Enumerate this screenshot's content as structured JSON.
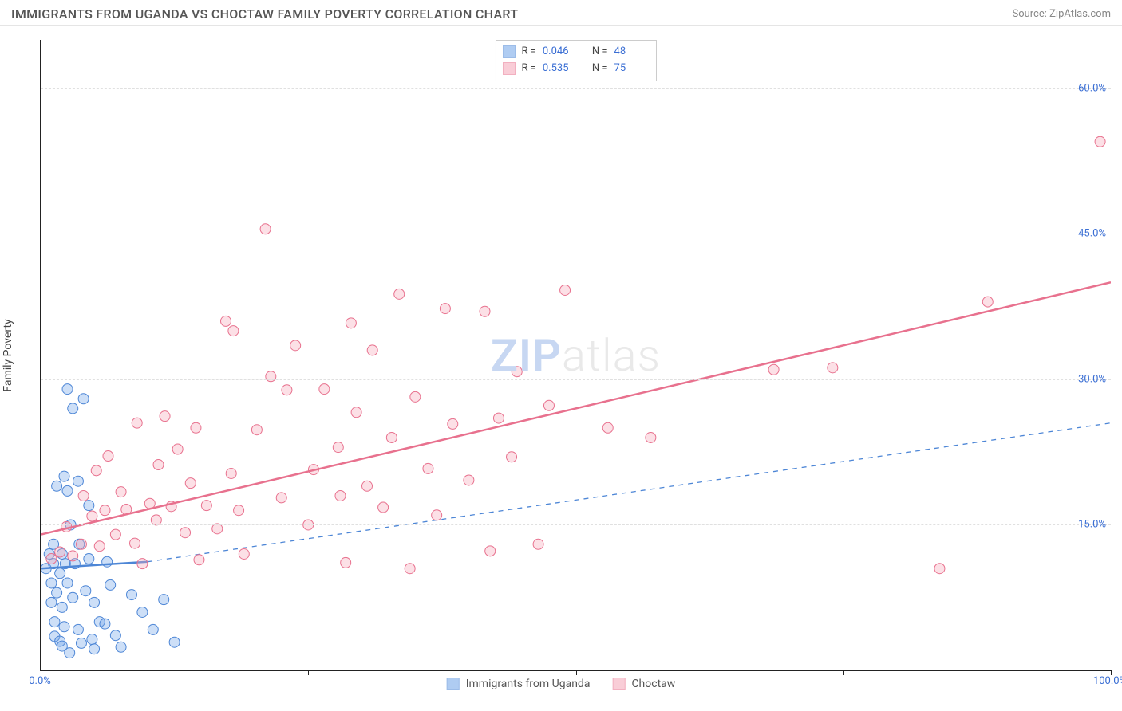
{
  "header": {
    "title": "IMMIGRANTS FROM UGANDA VS CHOCTAW FAMILY POVERTY CORRELATION CHART",
    "source": "Source: ZipAtlas.com"
  },
  "chart": {
    "type": "scatter",
    "ylabel": "Family Poverty",
    "xlim": [
      0,
      100
    ],
    "ylim": [
      0,
      65
    ],
    "xtick_positions": [
      0,
      25,
      50,
      75,
      100
    ],
    "xtick_labels": [
      "0.0%",
      "",
      "",
      "",
      "100.0%"
    ],
    "ytick_positions": [
      15,
      30,
      45,
      60
    ],
    "ytick_labels": [
      "15.0%",
      "30.0%",
      "45.0%",
      "60.0%"
    ],
    "grid_color": "#e0e0e0",
    "axis_color": "#222222",
    "background_color": "#ffffff",
    "marker_radius": 6.5,
    "marker_stroke_width": 1,
    "marker_fill_opacity": 0.35,
    "watermark": {
      "part1": "ZIP",
      "part2": "atlas"
    },
    "series": [
      {
        "name": "Immigrants from Uganda",
        "color": "#6fa3e8",
        "stroke": "#4d86d6",
        "r_value": "0.046",
        "n_value": "48",
        "trend": {
          "x1": 0,
          "y1": 10.5,
          "x2": 10,
          "y2": 11.2,
          "solid_until_x": 10,
          "dash_x2": 100,
          "dash_y2": 25.5
        },
        "points": [
          [
            0.5,
            10.5
          ],
          [
            0.8,
            12
          ],
          [
            1.0,
            9
          ],
          [
            1.0,
            7
          ],
          [
            1.2,
            11
          ],
          [
            1.2,
            13
          ],
          [
            1.3,
            5
          ],
          [
            1.3,
            3.5
          ],
          [
            1.5,
            8
          ],
          [
            1.5,
            19
          ],
          [
            1.8,
            10
          ],
          [
            1.8,
            3
          ],
          [
            2.0,
            12
          ],
          [
            2.0,
            2.5
          ],
          [
            2.0,
            6.5
          ],
          [
            2.2,
            4.5
          ],
          [
            2.2,
            20
          ],
          [
            2.3,
            11
          ],
          [
            2.5,
            9
          ],
          [
            2.5,
            18.5
          ],
          [
            2.5,
            29
          ],
          [
            2.7,
            1.8
          ],
          [
            2.8,
            15
          ],
          [
            3.0,
            7.5
          ],
          [
            3.0,
            27
          ],
          [
            3.2,
            11
          ],
          [
            3.5,
            4.2
          ],
          [
            3.5,
            19.5
          ],
          [
            3.6,
            13
          ],
          [
            3.8,
            2.8
          ],
          [
            4.0,
            28
          ],
          [
            4.2,
            8.2
          ],
          [
            4.5,
            17
          ],
          [
            4.5,
            11.5
          ],
          [
            4.8,
            3.2
          ],
          [
            5.0,
            7
          ],
          [
            5.0,
            2.2
          ],
          [
            5.5,
            5
          ],
          [
            6.0,
            4.8
          ],
          [
            6.2,
            11.2
          ],
          [
            6.5,
            8.8
          ],
          [
            7.0,
            3.6
          ],
          [
            7.5,
            2.4
          ],
          [
            8.5,
            7.8
          ],
          [
            9.5,
            6.0
          ],
          [
            10.5,
            4.2
          ],
          [
            11.5,
            7.3
          ],
          [
            12.5,
            2.9
          ]
        ]
      },
      {
        "name": "Choctaw",
        "color": "#f5a5b8",
        "stroke": "#e8718e",
        "r_value": "0.535",
        "n_value": "75",
        "trend": {
          "x1": 0,
          "y1": 14,
          "x2": 100,
          "y2": 40
        },
        "points": [
          [
            1.0,
            11.5
          ],
          [
            1.8,
            12.2
          ],
          [
            2.4,
            14.8
          ],
          [
            3.0,
            11.8
          ],
          [
            3.8,
            13.0
          ],
          [
            4.0,
            18.0
          ],
          [
            4.8,
            15.9
          ],
          [
            5.2,
            20.6
          ],
          [
            5.5,
            12.8
          ],
          [
            6.0,
            16.5
          ],
          [
            6.3,
            22.1
          ],
          [
            7.0,
            14.0
          ],
          [
            7.5,
            18.4
          ],
          [
            8.0,
            16.6
          ],
          [
            8.8,
            13.1
          ],
          [
            9.0,
            25.5
          ],
          [
            9.5,
            11.0
          ],
          [
            10.2,
            17.2
          ],
          [
            10.8,
            15.5
          ],
          [
            11.0,
            21.2
          ],
          [
            11.6,
            26.2
          ],
          [
            12.2,
            16.9
          ],
          [
            12.8,
            22.8
          ],
          [
            13.5,
            14.2
          ],
          [
            14.0,
            19.3
          ],
          [
            14.5,
            25.0
          ],
          [
            14.8,
            11.4
          ],
          [
            15.5,
            17.0
          ],
          [
            16.5,
            14.6
          ],
          [
            17.3,
            36.0
          ],
          [
            17.8,
            20.3
          ],
          [
            18.0,
            35.0
          ],
          [
            18.5,
            16.5
          ],
          [
            19.0,
            12.0
          ],
          [
            20.2,
            24.8
          ],
          [
            21.0,
            45.5
          ],
          [
            21.5,
            30.3
          ],
          [
            22.5,
            17.8
          ],
          [
            23.0,
            28.9
          ],
          [
            23.8,
            33.5
          ],
          [
            25.0,
            15.0
          ],
          [
            25.5,
            20.7
          ],
          [
            26.5,
            29.0
          ],
          [
            27.8,
            23.0
          ],
          [
            28.0,
            18.0
          ],
          [
            28.5,
            11.1
          ],
          [
            29.0,
            35.8
          ],
          [
            29.5,
            26.6
          ],
          [
            30.5,
            19.0
          ],
          [
            31.0,
            33.0
          ],
          [
            32.0,
            16.8
          ],
          [
            32.8,
            24.0
          ],
          [
            33.5,
            38.8
          ],
          [
            34.5,
            10.5
          ],
          [
            35.0,
            28.2
          ],
          [
            36.2,
            20.8
          ],
          [
            37.0,
            16.0
          ],
          [
            37.8,
            37.3
          ],
          [
            38.5,
            25.4
          ],
          [
            40.0,
            19.6
          ],
          [
            41.5,
            37.0
          ],
          [
            42.0,
            12.3
          ],
          [
            42.8,
            26.0
          ],
          [
            44.0,
            22.0
          ],
          [
            44.5,
            30.8
          ],
          [
            46.5,
            13.0
          ],
          [
            47.5,
            27.3
          ],
          [
            49.0,
            39.2
          ],
          [
            53.0,
            25.0
          ],
          [
            57.0,
            24.0
          ],
          [
            68.5,
            31.0
          ],
          [
            74.0,
            31.2
          ],
          [
            84.0,
            10.5
          ],
          [
            88.5,
            38.0
          ],
          [
            99.0,
            54.5
          ]
        ]
      }
    ],
    "legend_bottom": [
      {
        "label": "Immigrants from Uganda",
        "color": "#6fa3e8",
        "stroke": "#4d86d6"
      },
      {
        "label": "Choctaw",
        "color": "#f5a5b8",
        "stroke": "#e8718e"
      }
    ]
  }
}
